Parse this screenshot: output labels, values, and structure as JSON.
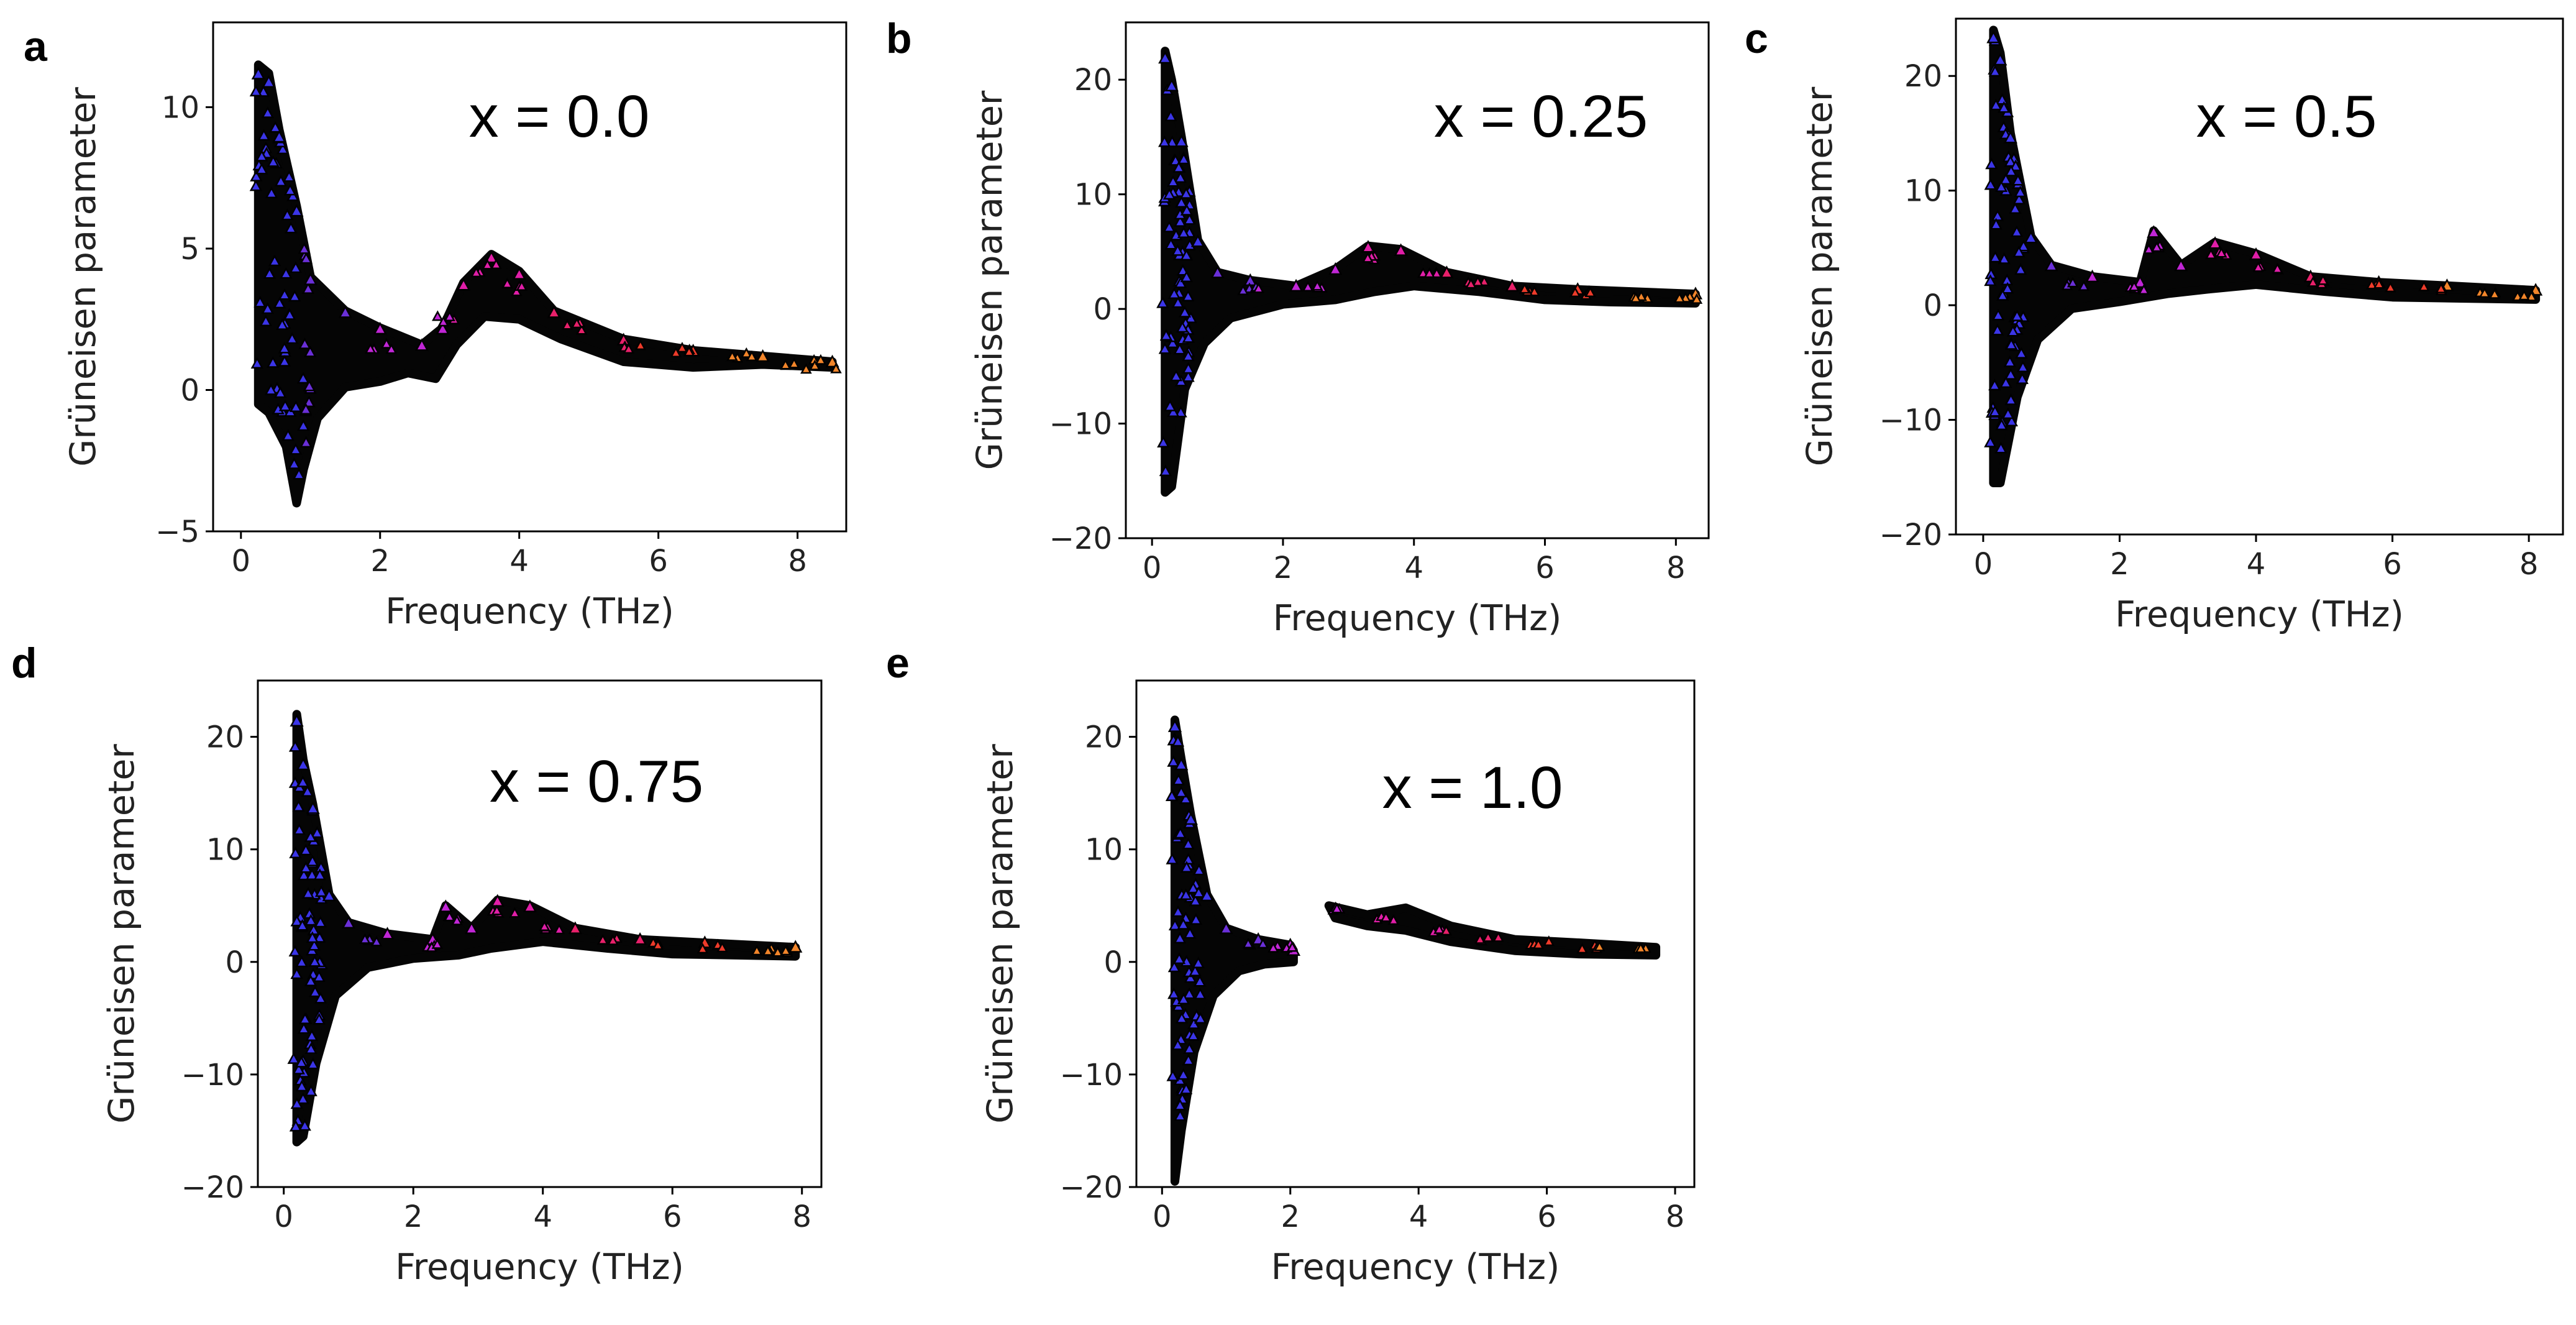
{
  "figure": {
    "panels_note": "Grüneisen parameter vs frequency for five compositions"
  },
  "chart_data": [
    {
      "panel": "a",
      "type": "scatter",
      "annotation": "x = 0.0",
      "xlabel": "Frequency (THz)",
      "ylabel": "Grüneisen parameter",
      "xlim": [
        -0.4,
        8.7
      ],
      "ylim": [
        -5,
        13
      ],
      "xticks": [
        0,
        2,
        4,
        6,
        8
      ],
      "yticks": [
        -5,
        0,
        5,
        10
      ],
      "xtick_labels": [
        "0",
        "2",
        "4",
        "6",
        "8"
      ],
      "ytick_labels": [
        "−5",
        "0",
        "5",
        "10"
      ],
      "envelope_upper": [
        [
          0.25,
          11.5
        ],
        [
          0.4,
          11.2
        ],
        [
          0.55,
          9.2
        ],
        [
          0.8,
          6.5
        ],
        [
          1.0,
          4.0
        ],
        [
          1.5,
          2.8
        ],
        [
          2.0,
          2.2
        ],
        [
          2.6,
          1.6
        ],
        [
          2.9,
          2.2
        ],
        [
          3.2,
          3.8
        ],
        [
          3.6,
          4.8
        ],
        [
          4.0,
          4.2
        ],
        [
          4.5,
          2.8
        ],
        [
          5.5,
          1.8
        ],
        [
          6.5,
          1.4
        ],
        [
          7.5,
          1.2
        ],
        [
          8.5,
          1.0
        ]
      ],
      "envelope_lower": [
        [
          8.5,
          0.8
        ],
        [
          7.5,
          0.9
        ],
        [
          6.5,
          0.8
        ],
        [
          5.5,
          1.0
        ],
        [
          4.6,
          1.8
        ],
        [
          4.0,
          2.5
        ],
        [
          3.5,
          2.6
        ],
        [
          3.1,
          1.6
        ],
        [
          2.8,
          0.4
        ],
        [
          2.4,
          0.6
        ],
        [
          2.0,
          0.3
        ],
        [
          1.5,
          0.1
        ],
        [
          1.1,
          -1.0
        ],
        [
          0.9,
          -2.8
        ],
        [
          0.8,
          -4.0
        ],
        [
          0.65,
          -2.0
        ],
        [
          0.4,
          -0.8
        ],
        [
          0.25,
          -0.5
        ]
      ],
      "low_frequency_range": [
        0.2,
        1.0
      ],
      "high_frequency_tail": [
        [
          2.0,
          1.5
        ],
        [
          3.0,
          2.5
        ],
        [
          3.5,
          4.3
        ],
        [
          4.0,
          3.6
        ],
        [
          4.8,
          2.2
        ],
        [
          5.6,
          1.6
        ],
        [
          6.4,
          1.3
        ],
        [
          7.2,
          1.1
        ],
        [
          8.0,
          0.9
        ],
        [
          8.4,
          0.9
        ]
      ]
    },
    {
      "panel": "b",
      "type": "scatter",
      "annotation": "x = 0.25",
      "xlabel": "Frequency (THz)",
      "ylabel": "Grüneisen parameter",
      "xlim": [
        -0.4,
        8.5
      ],
      "ylim": [
        -20,
        25
      ],
      "xticks": [
        0,
        2,
        4,
        6,
        8
      ],
      "yticks": [
        -20,
        -10,
        0,
        10,
        20
      ],
      "xtick_labels": [
        "0",
        "2",
        "4",
        "6",
        "8"
      ],
      "ytick_labels": [
        "−20",
        "−10",
        "0",
        "10",
        "20"
      ],
      "envelope_upper": [
        [
          0.2,
          22.5
        ],
        [
          0.3,
          20
        ],
        [
          0.45,
          15
        ],
        [
          0.7,
          6
        ],
        [
          1.0,
          3.2
        ],
        [
          1.5,
          2.5
        ],
        [
          2.2,
          2.0
        ],
        [
          2.8,
          3.5
        ],
        [
          3.3,
          5.5
        ],
        [
          3.8,
          5.2
        ],
        [
          4.5,
          3.2
        ],
        [
          5.5,
          2.0
        ],
        [
          6.5,
          1.7
        ],
        [
          8.3,
          1.3
        ]
      ],
      "envelope_lower": [
        [
          8.3,
          0.5
        ],
        [
          7.0,
          0.6
        ],
        [
          6.0,
          0.8
        ],
        [
          5.0,
          1.5
        ],
        [
          4.0,
          2.0
        ],
        [
          3.4,
          1.5
        ],
        [
          2.8,
          0.8
        ],
        [
          2.0,
          0.4
        ],
        [
          1.2,
          -0.8
        ],
        [
          0.8,
          -3.0
        ],
        [
          0.5,
          -7.0
        ],
        [
          0.3,
          -15.5
        ],
        [
          0.2,
          -16
        ]
      ],
      "low_frequency_range": [
        0.15,
        0.6
      ],
      "high_frequency_tail": [
        [
          1.5,
          1.7
        ],
        [
          2.5,
          1.8
        ],
        [
          3.4,
          4.4
        ],
        [
          4.2,
          3.2
        ],
        [
          5.0,
          2.2
        ],
        [
          5.8,
          1.6
        ],
        [
          6.6,
          1.3
        ],
        [
          7.4,
          1.0
        ],
        [
          8.2,
          0.9
        ]
      ]
    },
    {
      "panel": "c",
      "type": "scatter",
      "annotation": "x = 0.5",
      "xlabel": "Frequency (THz)",
      "ylabel": "Grüneisen parameter",
      "xlim": [
        -0.4,
        8.5
      ],
      "ylim": [
        -20,
        25
      ],
      "xticks": [
        0,
        2,
        4,
        6,
        8
      ],
      "yticks": [
        -20,
        -10,
        0,
        10,
        20
      ],
      "xtick_labels": [
        "0",
        "2",
        "4",
        "6",
        "8"
      ],
      "ytick_labels": [
        "−20",
        "−10",
        "0",
        "10",
        "20"
      ],
      "envelope_upper": [
        [
          0.15,
          24
        ],
        [
          0.25,
          22
        ],
        [
          0.4,
          15
        ],
        [
          0.7,
          6
        ],
        [
          1.0,
          3.5
        ],
        [
          1.6,
          2.5
        ],
        [
          2.3,
          2.0
        ],
        [
          2.5,
          6.5
        ],
        [
          2.9,
          3.5
        ],
        [
          3.4,
          5.5
        ],
        [
          4.0,
          4.5
        ],
        [
          4.8,
          2.5
        ],
        [
          5.8,
          2.0
        ],
        [
          6.8,
          1.7
        ],
        [
          8.1,
          1.3
        ]
      ],
      "envelope_lower": [
        [
          8.1,
          0.5
        ],
        [
          7.0,
          0.6
        ],
        [
          6.0,
          0.7
        ],
        [
          5.0,
          1.2
        ],
        [
          4.0,
          1.8
        ],
        [
          3.3,
          1.4
        ],
        [
          2.7,
          1.0
        ],
        [
          2.0,
          0.3
        ],
        [
          1.3,
          -0.3
        ],
        [
          0.8,
          -3.0
        ],
        [
          0.5,
          -8.0
        ],
        [
          0.25,
          -15.5
        ],
        [
          0.15,
          -15.5
        ]
      ],
      "low_frequency_range": [
        0.1,
        0.6
      ],
      "high_frequency_tail": [
        [
          1.4,
          1.8
        ],
        [
          2.2,
          1.4
        ],
        [
          2.6,
          5.0
        ],
        [
          3.5,
          4.5
        ],
        [
          4.2,
          3.2
        ],
        [
          5.0,
          2.0
        ],
        [
          5.8,
          1.6
        ],
        [
          6.6,
          1.4
        ],
        [
          7.4,
          1.1
        ],
        [
          8.0,
          0.9
        ]
      ]
    },
    {
      "panel": "d",
      "type": "scatter",
      "annotation": "x = 0.75",
      "xlabel": "Frequency (THz)",
      "ylabel": "Grüneisen parameter",
      "xlim": [
        -0.4,
        8.3
      ],
      "ylim": [
        -20,
        25
      ],
      "xticks": [
        0,
        2,
        4,
        6,
        8
      ],
      "yticks": [
        -20,
        -10,
        0,
        10,
        20
      ],
      "xtick_labels": [
        "0",
        "2",
        "4",
        "6",
        "8"
      ],
      "ytick_labels": [
        "−20",
        "−10",
        "0",
        "10",
        "20"
      ],
      "envelope_upper": [
        [
          0.2,
          22
        ],
        [
          0.3,
          18
        ],
        [
          0.45,
          14
        ],
        [
          0.7,
          6
        ],
        [
          1.0,
          3.5
        ],
        [
          1.6,
          2.5
        ],
        [
          2.3,
          2.0
        ],
        [
          2.5,
          5.0
        ],
        [
          2.9,
          3.0
        ],
        [
          3.3,
          5.5
        ],
        [
          3.8,
          5.0
        ],
        [
          4.5,
          3.0
        ],
        [
          5.5,
          2.0
        ],
        [
          6.5,
          1.7
        ],
        [
          7.9,
          1.3
        ]
      ],
      "envelope_lower": [
        [
          7.9,
          0.5
        ],
        [
          7.0,
          0.6
        ],
        [
          6.0,
          0.7
        ],
        [
          5.0,
          1.2
        ],
        [
          4.0,
          1.8
        ],
        [
          3.2,
          1.2
        ],
        [
          2.7,
          0.6
        ],
        [
          2.0,
          0.3
        ],
        [
          1.3,
          -0.5
        ],
        [
          0.8,
          -3.0
        ],
        [
          0.5,
          -9.0
        ],
        [
          0.3,
          -15.5
        ],
        [
          0.2,
          -16
        ]
      ],
      "low_frequency_range": [
        0.15,
        0.6
      ],
      "high_frequency_tail": [
        [
          1.4,
          1.8
        ],
        [
          2.2,
          1.4
        ],
        [
          2.6,
          3.8
        ],
        [
          3.4,
          4.4
        ],
        [
          4.2,
          3.0
        ],
        [
          5.0,
          2.0
        ],
        [
          5.8,
          1.6
        ],
        [
          6.6,
          1.3
        ],
        [
          7.4,
          1.1
        ],
        [
          7.8,
          0.9
        ]
      ]
    },
    {
      "panel": "e",
      "type": "scatter",
      "annotation": "x = 1.0",
      "xlabel": "Frequency (THz)",
      "ylabel": "Grüneisen parameter",
      "xlim": [
        -0.4,
        8.3
      ],
      "ylim": [
        -20,
        25
      ],
      "xticks": [
        0,
        2,
        4,
        6,
        8
      ],
      "yticks": [
        -20,
        -10,
        0,
        10,
        20
      ],
      "xtick_labels": [
        "0",
        "2",
        "4",
        "6",
        "8"
      ],
      "ytick_labels": [
        "−20",
        "−10",
        "0",
        "10",
        "20"
      ],
      "envelope_upper": [
        [
          0.2,
          21.5
        ],
        [
          0.3,
          18
        ],
        [
          0.45,
          13
        ],
        [
          0.7,
          6
        ],
        [
          1.0,
          3.0
        ],
        [
          1.5,
          2.0
        ],
        [
          2.0,
          1.5
        ],
        [
          2.05,
          1.0
        ]
      ],
      "envelope_lower": [
        [
          2.05,
          0.0
        ],
        [
          1.6,
          -0.2
        ],
        [
          1.2,
          -0.8
        ],
        [
          0.8,
          -3.0
        ],
        [
          0.5,
          -8.0
        ],
        [
          0.3,
          -15.0
        ],
        [
          0.2,
          -19.5
        ]
      ],
      "second_envelope_upper": [
        [
          2.6,
          5.0
        ],
        [
          3.2,
          4.2
        ],
        [
          3.8,
          4.8
        ],
        [
          4.5,
          3.2
        ],
        [
          5.5,
          2.0
        ],
        [
          6.5,
          1.7
        ],
        [
          7.7,
          1.3
        ]
      ],
      "second_envelope_lower": [
        [
          7.7,
          0.6
        ],
        [
          6.5,
          0.7
        ],
        [
          5.5,
          1.0
        ],
        [
          4.5,
          1.8
        ],
        [
          3.8,
          2.8
        ],
        [
          3.2,
          3.2
        ],
        [
          2.7,
          3.9
        ]
      ],
      "low_frequency_range": [
        0.15,
        0.6
      ],
      "high_frequency_tail": [
        [
          1.4,
          1.6
        ],
        [
          1.9,
          1.2
        ],
        [
          2.7,
          4.6
        ],
        [
          3.5,
          3.8
        ],
        [
          4.3,
          2.8
        ],
        [
          5.1,
          2.0
        ],
        [
          5.9,
          1.6
        ],
        [
          6.7,
          1.3
        ],
        [
          7.5,
          1.1
        ]
      ]
    }
  ]
}
